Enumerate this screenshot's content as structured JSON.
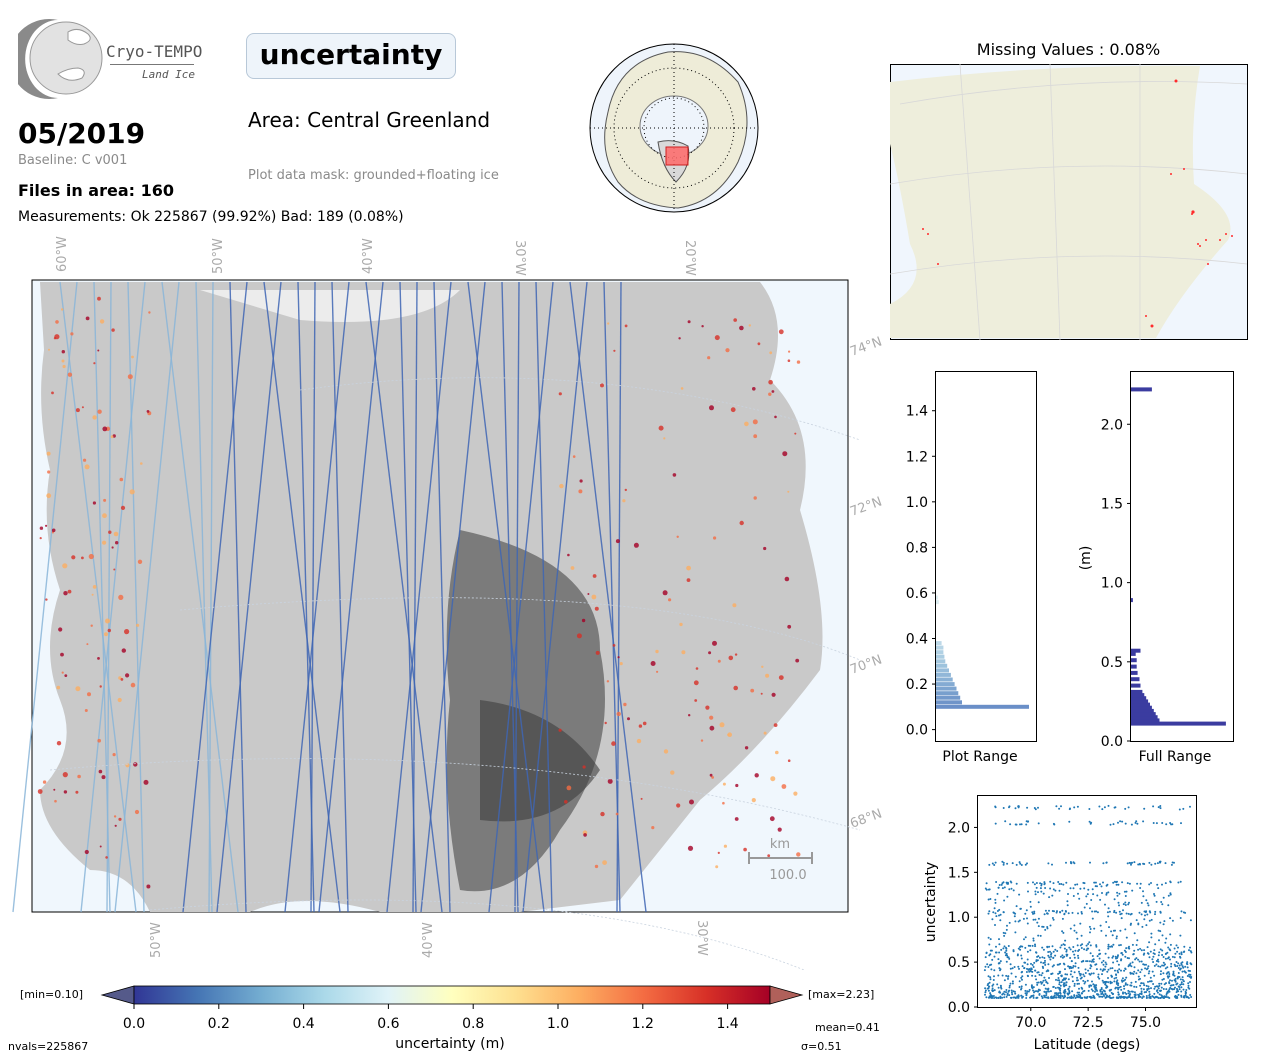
{
  "header": {
    "logo_text": "Cryo-TEMPO",
    "logo_subtext": "Land Ice",
    "parameter_title": "uncertainty",
    "date": "05/2019",
    "baseline": "Baseline: C v001",
    "files_in_area": "Files in area: 160",
    "measurements": "Measurements: Ok 225867 (99.92%) Bad: 189 (0.08%)",
    "area": "Area: Central Greenland",
    "mask": "Plot data mask: grounded+floating ice"
  },
  "map": {
    "lon_labels_top": [
      "60°W",
      "50°W",
      "40°W",
      "30°W",
      "20°W"
    ],
    "lon_labels_bottom": [
      "50°W",
      "40°W",
      "30°W"
    ],
    "lat_labels": [
      "74°N",
      "72°N",
      "70°N",
      "68°N"
    ],
    "scale_unit": "km",
    "scale_value": "100.0"
  },
  "missing": {
    "title": "Missing Values : 0.08%"
  },
  "colorbar": {
    "min_label": "[min=0.10]",
    "max_label": "[max=2.23]",
    "ticks": [
      "0.0",
      "0.2",
      "0.4",
      "0.6",
      "0.8",
      "1.0",
      "1.2",
      "1.4"
    ],
    "label": "uncertainty (m)",
    "mean": "mean=0.41",
    "sigma": "σ=0.51",
    "nvals": "nvals=225867"
  },
  "chart_data": [
    {
      "type": "bar",
      "orientation": "horizontal",
      "xlabel": "Plot Range",
      "ylabel": "",
      "ylim": [
        -0.05,
        1.57
      ],
      "yticks": [
        "0.0",
        "0.2",
        "0.4",
        "0.6",
        "0.8",
        "1.0",
        "1.2",
        "1.4"
      ],
      "bins": [
        0.1,
        0.12,
        0.14,
        0.16,
        0.18,
        0.2,
        0.22,
        0.24,
        0.26,
        0.28,
        0.3,
        0.32,
        0.34,
        0.36,
        0.38,
        0.56,
        0.58
      ],
      "values": [
        1.0,
        0.28,
        0.26,
        0.24,
        0.22,
        0.2,
        0.18,
        0.16,
        0.14,
        0.12,
        0.1,
        0.09,
        0.08,
        0.08,
        0.06,
        0.03,
        0.02
      ],
      "colors": [
        "#6a8fc8",
        "#6f94c9",
        "#7399cb",
        "#789fcd",
        "#7ea5d0",
        "#84abd3",
        "#8ab1d5",
        "#91b7d8",
        "#98bddb",
        "#9ec3dd",
        "#a5c8df",
        "#abcde2",
        "#b1d1e4",
        "#b7d5e6",
        "#bdd9e8",
        "#dbecf0",
        "#dfeef2"
      ]
    },
    {
      "type": "bar",
      "orientation": "horizontal",
      "xlabel": "Full Range",
      "ylabel": "(m)",
      "ylim": [
        0.0,
        2.33
      ],
      "yticks": [
        "0.0",
        "0.5",
        "1.0",
        "1.5",
        "2.0"
      ],
      "bins": [
        0.11,
        0.13,
        0.15,
        0.17,
        0.19,
        0.21,
        0.23,
        0.25,
        0.27,
        0.29,
        0.31,
        0.35,
        0.39,
        0.43,
        0.47,
        0.51,
        0.55,
        0.57,
        0.89,
        2.22
      ],
      "values": [
        1.0,
        0.3,
        0.28,
        0.26,
        0.24,
        0.22,
        0.2,
        0.18,
        0.16,
        0.14,
        0.12,
        0.1,
        0.09,
        0.07,
        0.06,
        0.06,
        0.05,
        0.1,
        0.02,
        0.22
      ],
      "color": "#3b3ca0"
    },
    {
      "type": "scatter",
      "xlabel": "Latitude (degs)",
      "ylabel": "uncertainty",
      "xlim": [
        67.7,
        77.2
      ],
      "ylim": [
        0.0,
        2.35
      ],
      "xticks": [
        "70.0",
        "72.5",
        "75.0"
      ],
      "yticks": [
        "0.0",
        "0.5",
        "1.0",
        "1.5",
        "2.0"
      ],
      "color": "#1f77b4",
      "bands": [
        2.22,
        2.05,
        1.6,
        1.38,
        1.05
      ],
      "x_range": [
        68.0,
        77.0
      ]
    }
  ]
}
